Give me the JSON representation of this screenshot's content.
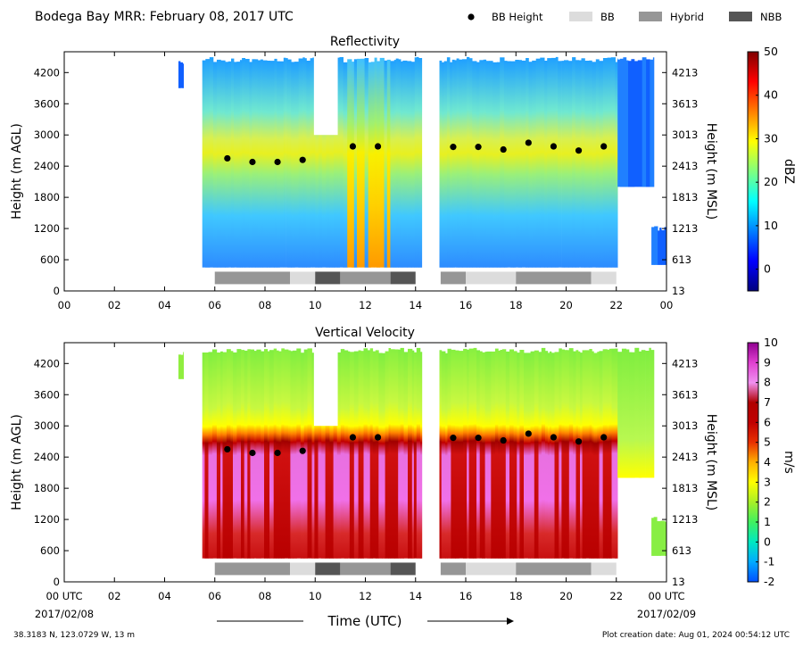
{
  "header": {
    "title": "Bodega Bay MRR:  February 08, 2017 UTC",
    "legend": [
      {
        "label": "BB Height",
        "kind": "dot",
        "color": "#000000"
      },
      {
        "label": "BB",
        "kind": "box",
        "color": "#dcdcdc"
      },
      {
        "label": "Hybrid",
        "kind": "box",
        "color": "#969696"
      },
      {
        "label": "NBB",
        "kind": "box",
        "color": "#555555"
      }
    ]
  },
  "footer": {
    "location": "38.3183 N, 123.0729 W, 13 m",
    "creation": "Plot creation date: Aug 01, 2024 00:54:12 UTC",
    "xlabel": "Time (UTC)",
    "start_date": "2017/02/08",
    "end_date": "2017/02/09"
  },
  "chart_data": [
    {
      "type": "heatmap",
      "title": "Reflectivity",
      "xlabel": "",
      "ylabel": "Height (m AGL)",
      "ylabel_right": "Height (m MSL)",
      "xlim": [
        0,
        24
      ],
      "ylim": [
        0,
        4600
      ],
      "x_ticks": [
        "00",
        "02",
        "04",
        "06",
        "08",
        "10",
        "12",
        "14",
        "16",
        "18",
        "20",
        "22",
        "00"
      ],
      "y_ticks_left": [
        "0",
        "600",
        "1200",
        "1800",
        "2400",
        "3000",
        "3600",
        "4200"
      ],
      "y_ticks_right": [
        "13",
        "613",
        "1213",
        "1813",
        "2413",
        "3013",
        "3613",
        "4213"
      ],
      "colorbar": {
        "label": "dBZ",
        "min": -5,
        "max": 50,
        "ticks": [
          "0",
          "10",
          "20",
          "30",
          "40",
          "50"
        ],
        "colors": [
          "#00007f",
          "#0000ff",
          "#007fff",
          "#00ffff",
          "#7fff7f",
          "#ffff00",
          "#ff7f00",
          "#ff0000",
          "#7f0000"
        ]
      },
      "bb_height": {
        "x": [
          6.5,
          7.5,
          8.5,
          9.5,
          11.5,
          12.5,
          15.5,
          16.5,
          17.5,
          18.5,
          19.5,
          20.5,
          21.5
        ],
        "y": [
          2550,
          2480,
          2480,
          2520,
          2780,
          2780,
          2770,
          2770,
          2720,
          2850,
          2780,
          2700,
          2780
        ]
      }
    },
    {
      "type": "heatmap",
      "title": "Vertical Velocity",
      "xlabel": "Time (UTC)",
      "ylabel": "Height (m AGL)",
      "ylabel_right": "Height (m MSL)",
      "xlim": [
        0,
        24
      ],
      "ylim": [
        0,
        4600
      ],
      "x_ticks": [
        "00 UTC",
        "02",
        "04",
        "06",
        "08",
        "10",
        "12",
        "14",
        "16",
        "18",
        "20",
        "22",
        "00 UTC"
      ],
      "y_ticks_left": [
        "0",
        "600",
        "1200",
        "1800",
        "2400",
        "3000",
        "3600",
        "4200"
      ],
      "y_ticks_right": [
        "13",
        "613",
        "1213",
        "1813",
        "2413",
        "3013",
        "3613",
        "4213"
      ],
      "colorbar": {
        "label": "m/s",
        "min": -2,
        "max": 10,
        "ticks": [
          "-2",
          "-1",
          "0",
          "1",
          "2",
          "3",
          "4",
          "5",
          "6",
          "7",
          "8",
          "9",
          "10"
        ],
        "colors": [
          "#0050ff",
          "#00aaff",
          "#00e8c0",
          "#40f060",
          "#a8f028",
          "#ffff00",
          "#ffb000",
          "#e83000",
          "#c00000",
          "#b00000",
          "#f090f0",
          "#e040d0",
          "#900090"
        ]
      },
      "bb_height": {
        "x": [
          6.5,
          7.5,
          8.5,
          9.5,
          11.5,
          12.5,
          15.5,
          16.5,
          17.5,
          18.5,
          19.5,
          20.5,
          21.5
        ],
        "y": [
          2550,
          2480,
          2480,
          2520,
          2780,
          2780,
          2770,
          2770,
          2720,
          2850,
          2780,
          2700,
          2780
        ]
      }
    }
  ],
  "bb_classification": [
    {
      "start": 6.0,
      "end": 9.0,
      "class": "Hybrid"
    },
    {
      "start": 9.0,
      "end": 10.0,
      "class": "BB"
    },
    {
      "start": 10.0,
      "end": 11.0,
      "class": "NBB"
    },
    {
      "start": 11.0,
      "end": 13.0,
      "class": "Hybrid"
    },
    {
      "start": 13.0,
      "end": 14.0,
      "class": "NBB"
    },
    {
      "start": 15.0,
      "end": 16.0,
      "class": "Hybrid"
    },
    {
      "start": 16.0,
      "end": 18.0,
      "class": "BB"
    },
    {
      "start": 18.0,
      "end": 21.0,
      "class": "Hybrid"
    },
    {
      "start": 21.0,
      "end": 22.0,
      "class": "BB"
    }
  ],
  "data_segments": [
    {
      "start": 4.55,
      "end": 4.75,
      "top": 4450,
      "bottom": 3900
    },
    {
      "start": 5.5,
      "end": 14.25,
      "top": 4500,
      "bottom": 450
    },
    {
      "start": 14.95,
      "end": 22.05,
      "top": 4500,
      "bottom": 450
    },
    {
      "start": 22.05,
      "end": 23.5,
      "top": 4500,
      "bottom": 2000
    },
    {
      "start": 23.4,
      "end": 24.0,
      "top": 1250,
      "bottom": 500
    }
  ],
  "data_gap": {
    "start": 9.95,
    "end": 10.9,
    "top": 4500,
    "bottom": 3000
  }
}
